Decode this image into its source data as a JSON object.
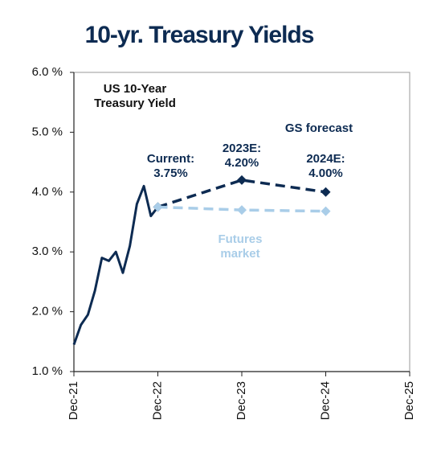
{
  "chart_data": {
    "type": "line",
    "title": "10-yr. Treasury Yields",
    "xlim": [
      "2021-12",
      "2025-12"
    ],
    "xticks": [
      {
        "value": "2021-12",
        "label": "Dec-21"
      },
      {
        "value": "2022-12",
        "label": "Dec-22"
      },
      {
        "value": "2023-12",
        "label": "Dec-23"
      },
      {
        "value": "2024-12",
        "label": "Dec-24"
      },
      {
        "value": "2025-12",
        "label": "Dec-25"
      }
    ],
    "ylim": [
      1,
      6
    ],
    "yticks": [
      {
        "value": 1,
        "label": "1.0 %"
      },
      {
        "value": 2,
        "label": "2.0 %"
      },
      {
        "value": 3,
        "label": "3.0 %"
      },
      {
        "value": 4,
        "label": "4.0 %"
      },
      {
        "value": 5,
        "label": "5.0 %"
      },
      {
        "value": 6,
        "label": "6.0 %"
      }
    ],
    "grid": false,
    "series": [
      {
        "name": "US 10-Year Treasury Yield",
        "color": "#0d2b52",
        "dash": false,
        "markers": false,
        "x": [
          "2021-12",
          "2022-01",
          "2022-02",
          "2022-03",
          "2022-04",
          "2022-05",
          "2022-06",
          "2022-07",
          "2022-08",
          "2022-09",
          "2022-10",
          "2022-11",
          "2022-12"
        ],
        "values": [
          1.45,
          1.78,
          1.95,
          2.35,
          2.9,
          2.85,
          3.0,
          2.65,
          3.1,
          3.8,
          4.1,
          3.6,
          3.75
        ]
      },
      {
        "name": "GS forecast",
        "color": "#0d2b52",
        "dash": true,
        "markers": true,
        "x": [
          "2022-12",
          "2023-12",
          "2024-12"
        ],
        "values": [
          3.75,
          4.2,
          4.0
        ],
        "value_labels": [
          "Current: 3.75%",
          "2023E: 4.20%",
          "2024E: 4.00%"
        ]
      },
      {
        "name": "Futures market",
        "color": "#a9cde8",
        "dash": true,
        "markers": true,
        "x": [
          "2022-12",
          "2023-12",
          "2024-12"
        ],
        "values": [
          3.75,
          3.7,
          3.68
        ]
      }
    ]
  }
}
